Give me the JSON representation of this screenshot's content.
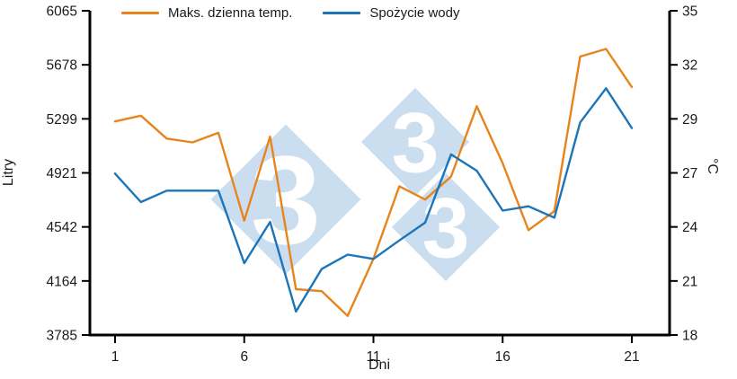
{
  "colors": {
    "temp": "#E8841C",
    "water": "#1B75B8",
    "watermark": "#CBDEEF",
    "axis": "#000000"
  },
  "chart_data": {
    "type": "line",
    "title": "",
    "x": [
      1,
      2,
      3,
      4,
      5,
      6,
      7,
      8,
      9,
      10,
      11,
      12,
      13,
      14,
      15,
      16,
      17,
      18,
      19,
      20,
      21
    ],
    "series": [
      {
        "name": "Maks. dzienna temp.",
        "axis": "right",
        "color": "#E8841C",
        "values": [
          29.2,
          29.5,
          28.3,
          28.1,
          28.6,
          24.0,
          28.4,
          20.4,
          20.3,
          19.0,
          22.0,
          25.8,
          25.1,
          26.3,
          30.0,
          27.0,
          23.5,
          24.5,
          32.6,
          33.0,
          31.0
        ]
      },
      {
        "name": "Spożycie wody",
        "axis": "left",
        "color": "#1B75B8",
        "values": [
          4920,
          4720,
          4800,
          4800,
          4800,
          4290,
          4580,
          3950,
          4250,
          4350,
          4320,
          4450,
          4575,
          5055,
          4940,
          4660,
          4690,
          4610,
          5280,
          5520,
          5240
        ]
      }
    ],
    "x_axis": {
      "label": "Dni",
      "ticks": [
        1,
        6,
        11,
        16,
        21
      ],
      "range": [
        1,
        21
      ]
    },
    "left_axis": {
      "label": "Litry",
      "ticks": [
        6065,
        5678,
        5299,
        4921,
        4542,
        4164,
        3785
      ],
      "range": [
        3785,
        6065
      ]
    },
    "right_axis": {
      "label": "°C",
      "ticks": [
        35,
        32,
        29,
        27,
        24,
        21,
        18
      ],
      "range": [
        18,
        35
      ]
    },
    "grid": false,
    "legend_position": "top",
    "watermark_text": "3"
  }
}
